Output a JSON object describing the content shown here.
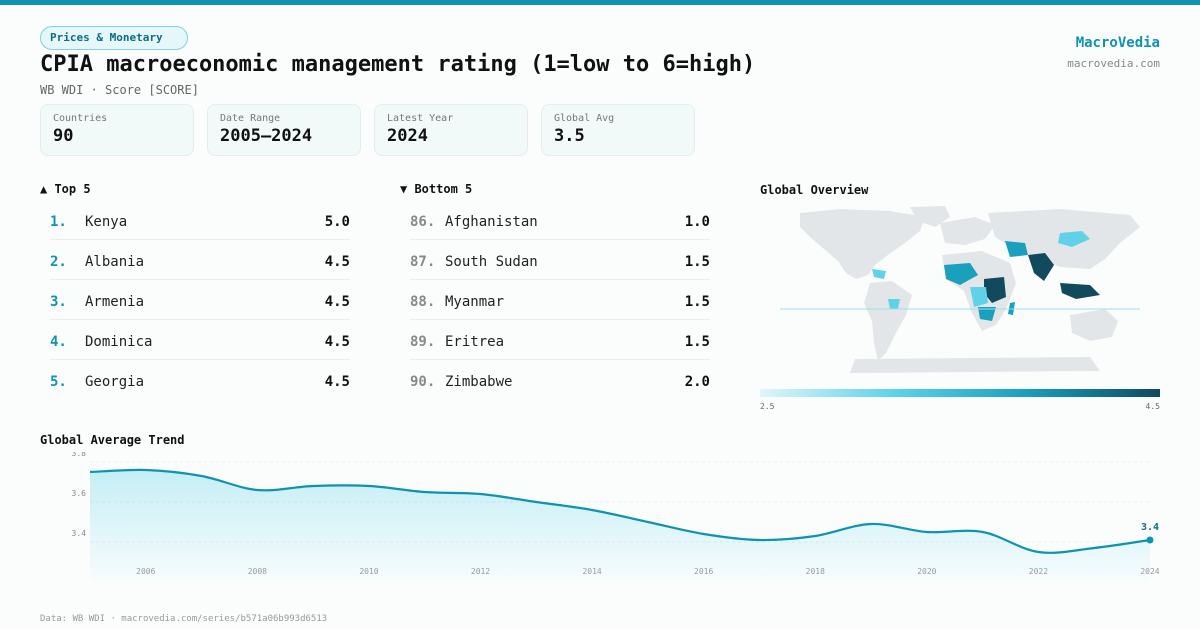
{
  "header": {
    "category": "Prices & Monetary",
    "title": "CPIA macroeconomic management rating (1=low to 6=high)",
    "subtitle": "WB WDI · Score [SCORE]",
    "brand_name": "MacroVedia",
    "brand_url": "macrovedia.com"
  },
  "stats": [
    {
      "label": "Countries",
      "value": "90"
    },
    {
      "label": "Date Range",
      "value": "2005–2024"
    },
    {
      "label": "Latest Year",
      "value": "2024"
    },
    {
      "label": "Global Avg",
      "value": "3.5"
    }
  ],
  "top5": {
    "heading": "▲ Top 5",
    "items": [
      {
        "rank": "1.",
        "name": "Kenya",
        "score": "5.0"
      },
      {
        "rank": "2.",
        "name": "Albania",
        "score": "4.5"
      },
      {
        "rank": "3.",
        "name": "Armenia",
        "score": "4.5"
      },
      {
        "rank": "4.",
        "name": "Dominica",
        "score": "4.5"
      },
      {
        "rank": "5.",
        "name": "Georgia",
        "score": "4.5"
      }
    ]
  },
  "bottom5": {
    "heading": "▼ Bottom 5",
    "items": [
      {
        "rank": "86.",
        "name": "Afghanistan",
        "score": "1.0"
      },
      {
        "rank": "87.",
        "name": "South Sudan",
        "score": "1.5"
      },
      {
        "rank": "88.",
        "name": "Myanmar",
        "score": "1.5"
      },
      {
        "rank": "89.",
        "name": "Eritrea",
        "score": "1.5"
      },
      {
        "rank": "90.",
        "name": "Zimbabwe",
        "score": "2.0"
      }
    ]
  },
  "map": {
    "heading": "Global Overview",
    "legend_min": "2.5",
    "legend_max": "4.5",
    "colors": {
      "low": "#dff6fa",
      "mid": "#1a9fbc",
      "high": "#104a5c",
      "nodata": "#e3e6e8"
    }
  },
  "trend": {
    "heading": "Global Average Trend"
  },
  "chart_data": {
    "type": "area",
    "title": "Global Average Trend",
    "x": [
      2005,
      2006,
      2007,
      2008,
      2009,
      2010,
      2011,
      2012,
      2013,
      2014,
      2015,
      2016,
      2017,
      2018,
      2019,
      2020,
      2021,
      2022,
      2023,
      2024
    ],
    "y": [
      3.75,
      3.76,
      3.73,
      3.66,
      3.68,
      3.68,
      3.65,
      3.64,
      3.6,
      3.56,
      3.5,
      3.44,
      3.41,
      3.43,
      3.49,
      3.45,
      3.45,
      3.35,
      3.37,
      3.41
    ],
    "x_ticks": [
      "2006",
      "2008",
      "2010",
      "2012",
      "2014",
      "2016",
      "2018",
      "2020",
      "2022",
      "2024"
    ],
    "y_ticks": [
      "3.4",
      "3.6",
      "3.8"
    ],
    "ylim": [
      3.3,
      3.85
    ],
    "last_label": "3.4",
    "grid": true,
    "color": "#0e93b0"
  },
  "footer": {
    "source": "Data: WB WDI · macrovedia.com/series/b571a06b993d6513"
  }
}
